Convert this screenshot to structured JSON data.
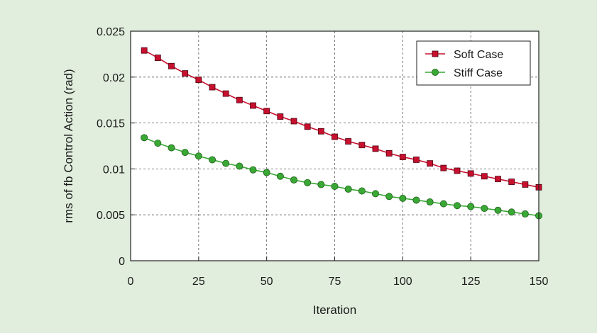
{
  "chart_data": {
    "type": "line",
    "xlabel": "Iteration",
    "ylabel": "rms of fb Control Action (rad)",
    "xlim": [
      0,
      150
    ],
    "ylim": [
      0,
      0.025
    ],
    "xticks": [
      0,
      25,
      50,
      75,
      100,
      125,
      150
    ],
    "yticks": [
      0,
      0.005,
      0.01,
      0.015,
      0.02,
      0.025
    ],
    "xtick_labels": [
      "0",
      "25",
      "50",
      "75",
      "100",
      "125",
      "150"
    ],
    "ytick_labels": [
      "0",
      "0.005",
      "0.01",
      "0.015",
      "0.02",
      "0.025"
    ],
    "grid": true,
    "legend_position": "top-right",
    "x": [
      5,
      10,
      15,
      20,
      25,
      30,
      35,
      40,
      45,
      50,
      55,
      60,
      65,
      70,
      75,
      80,
      85,
      90,
      95,
      100,
      105,
      110,
      115,
      120,
      125,
      130,
      135,
      140,
      145,
      150
    ],
    "series": [
      {
        "name": "Soft Case",
        "color": "#c8102e",
        "marker": "square",
        "values": [
          0.0229,
          0.0221,
          0.0212,
          0.0204,
          0.0197,
          0.0189,
          0.0182,
          0.0175,
          0.0169,
          0.0163,
          0.0157,
          0.0152,
          0.0146,
          0.0141,
          0.0135,
          0.013,
          0.0126,
          0.0122,
          0.0117,
          0.0113,
          0.011,
          0.0106,
          0.0101,
          0.0098,
          0.0095,
          0.0092,
          0.0089,
          0.0086,
          0.0083,
          0.008
        ]
      },
      {
        "name": "Stiff Case",
        "color": "#3aa835",
        "marker": "circle",
        "values": [
          0.0134,
          0.0128,
          0.0123,
          0.0118,
          0.0114,
          0.011,
          0.0106,
          0.0103,
          0.0099,
          0.0096,
          0.0092,
          0.0088,
          0.0085,
          0.0083,
          0.0081,
          0.0078,
          0.0076,
          0.0073,
          0.007,
          0.0068,
          0.0066,
          0.0064,
          0.0062,
          0.006,
          0.0059,
          0.0057,
          0.0055,
          0.0053,
          0.0051,
          0.0049
        ]
      }
    ]
  }
}
